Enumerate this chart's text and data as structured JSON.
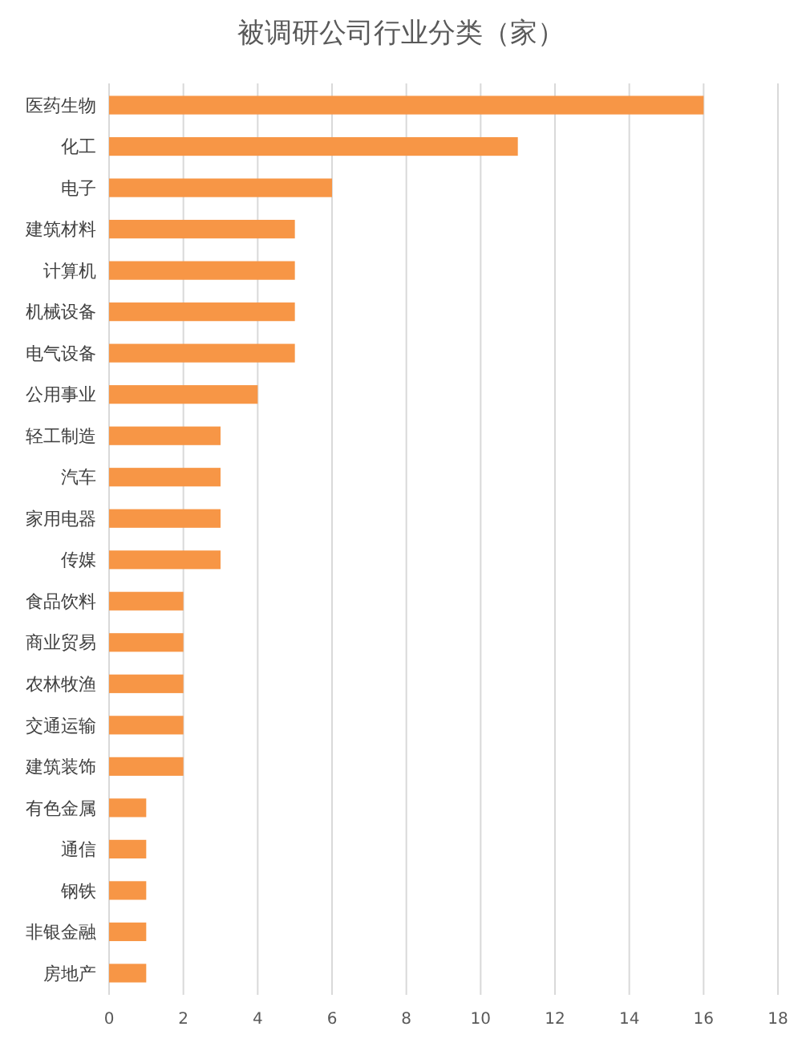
{
  "chart_data": {
    "type": "bar",
    "orientation": "horizontal",
    "title": "被调研公司行业分类（家）",
    "categories": [
      "医药生物",
      "化工",
      "电子",
      "建筑材料",
      "计算机",
      "机械设备",
      "电气设备",
      "公用事业",
      "轻工制造",
      "汽车",
      "家用电器",
      "传媒",
      "食品饮料",
      "商业贸易",
      "农林牧渔",
      "交通运输",
      "建筑装饰",
      "有色金属",
      "通信",
      "钢铁",
      "非银金融",
      "房地产"
    ],
    "values": [
      16,
      11,
      6,
      5,
      5,
      5,
      5,
      4,
      3,
      3,
      3,
      3,
      2,
      2,
      2,
      2,
      2,
      1,
      1,
      1,
      1,
      1
    ],
    "color": "#f79646",
    "xlim": [
      0,
      18
    ],
    "xticks": [
      0,
      2,
      4,
      6,
      8,
      10,
      12,
      14,
      16,
      18
    ],
    "grid": "x"
  }
}
